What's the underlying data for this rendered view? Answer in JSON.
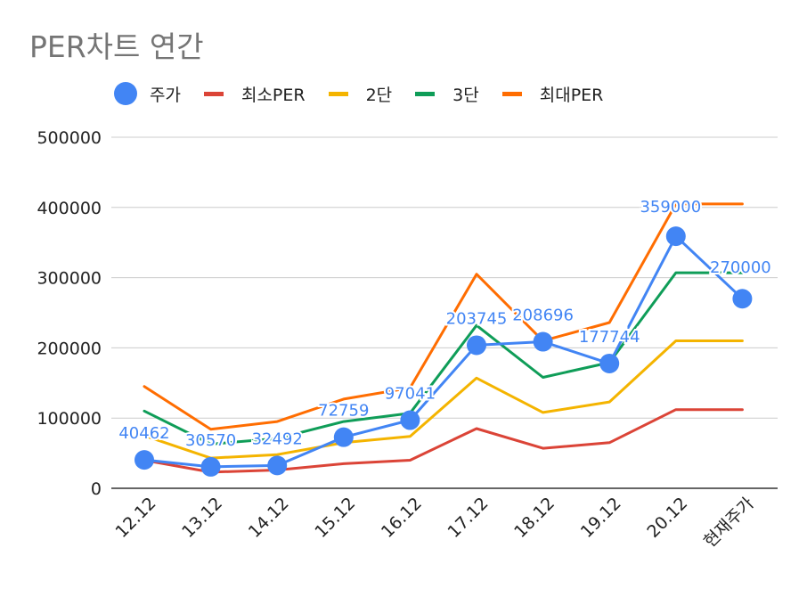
{
  "colors": {
    "price": "#4285F4",
    "min_per": "#DB4437",
    "stage2": "#F4B400",
    "stage3": "#0F9D58",
    "max_per": "#FF6D01",
    "grid": "#cccccc",
    "axis_text": "#222222",
    "data_label": "#4285F4"
  },
  "chart_data": {
    "type": "line",
    "title": "PER차트 연간",
    "categories": [
      "12.12",
      "13.12",
      "14.12",
      "15.12",
      "16.12",
      "17.12",
      "18.12",
      "19.12",
      "20.12",
      "현재주가"
    ],
    "y_ticks": [
      0,
      100000,
      200000,
      300000,
      400000,
      500000
    ],
    "ylim": [
      0,
      500000
    ],
    "grid": true,
    "legend_position": "top",
    "series": [
      {
        "name": "주가",
        "style": "line-with-markers",
        "color": "#4285F4",
        "values": [
          40462,
          30570,
          32492,
          72759,
          97041,
          203745,
          208696,
          177744,
          359000,
          270000
        ],
        "data_labels": [
          "40462",
          "30570",
          "32492",
          "72759",
          "97041",
          "203745",
          "208696",
          "177744",
          "359000",
          "270000"
        ]
      },
      {
        "name": "최소PER",
        "style": "line",
        "color": "#DB4437",
        "values": [
          40000,
          23000,
          26000,
          35000,
          40000,
          85000,
          57000,
          65000,
          112000,
          112000
        ]
      },
      {
        "name": "2단",
        "style": "line",
        "color": "#F4B400",
        "values": [
          75000,
          43000,
          48000,
          65000,
          74000,
          157000,
          108000,
          123000,
          210000,
          210000
        ]
      },
      {
        "name": "3단",
        "style": "line",
        "color": "#0F9D58",
        "values": [
          110000,
          63000,
          71000,
          95000,
          107000,
          232000,
          158000,
          179000,
          307000,
          307000
        ]
      },
      {
        "name": "최대PER",
        "style": "line",
        "color": "#FF6D01",
        "values": [
          145000,
          84000,
          95000,
          127000,
          143000,
          305000,
          210000,
          236000,
          405000,
          405000
        ]
      }
    ]
  }
}
